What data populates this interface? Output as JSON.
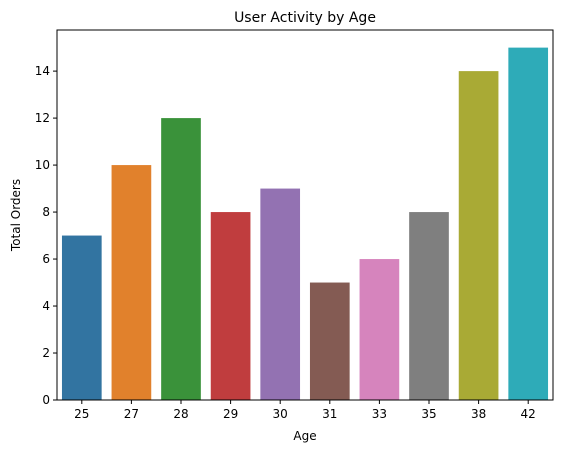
{
  "chart_data": {
    "type": "bar",
    "title": "User Activity by Age",
    "xlabel": "Age",
    "ylabel": "Total Orders",
    "categories": [
      "25",
      "27",
      "28",
      "29",
      "30",
      "31",
      "33",
      "35",
      "38",
      "42"
    ],
    "values": [
      7,
      10,
      12,
      8,
      9,
      5,
      6,
      8,
      14,
      15
    ],
    "colors": [
      "#3274a1",
      "#e1812c",
      "#3a923a",
      "#c03d3e",
      "#9372b2",
      "#845b53",
      "#d684bd",
      "#7f7f7f",
      "#a9aa35",
      "#2eabb8"
    ],
    "ylim": [
      0,
      15.75
    ],
    "yticks": [
      0,
      2,
      4,
      6,
      8,
      10,
      12,
      14
    ],
    "grid": false,
    "legend": "none"
  }
}
